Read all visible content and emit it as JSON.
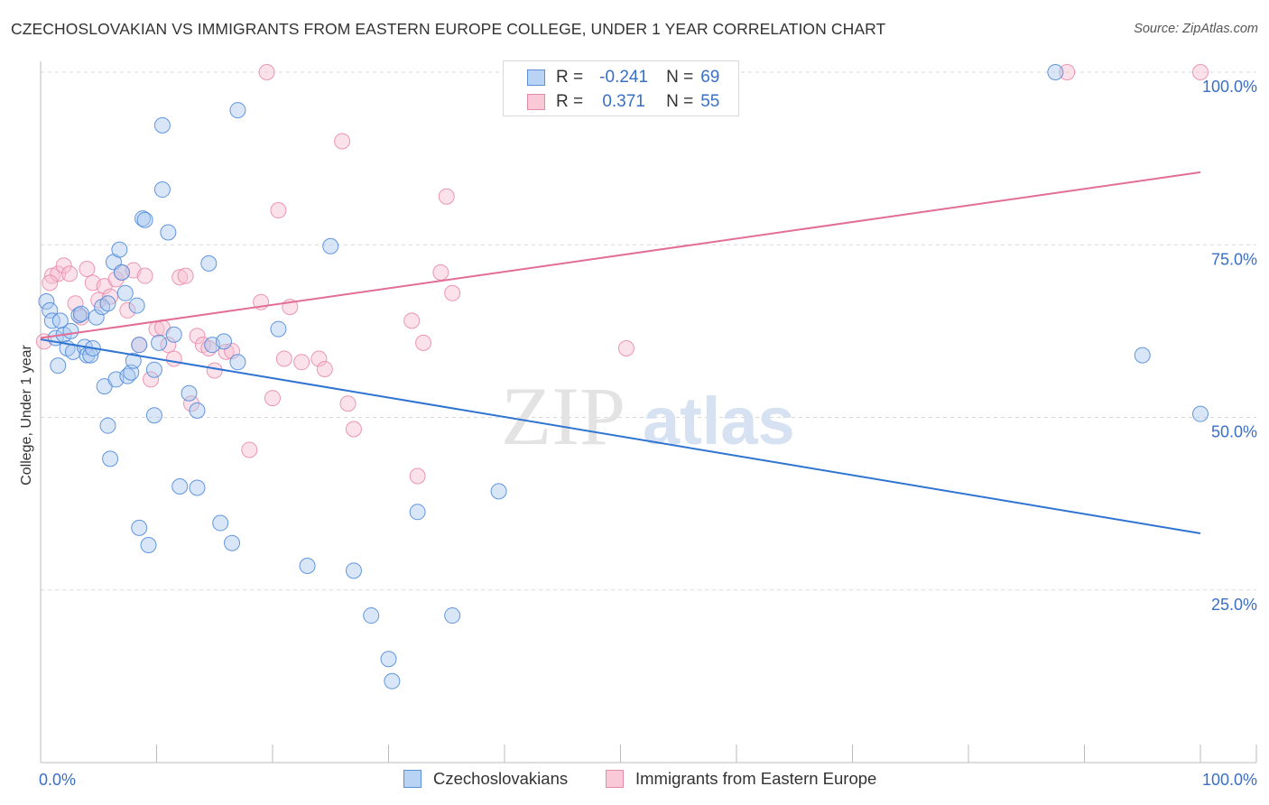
{
  "title": "CZECHOSLOVAKIAN VS IMMIGRANTS FROM EASTERN EUROPE COLLEGE, UNDER 1 YEAR CORRELATION CHART",
  "source": "Source: ZipAtlas.com",
  "watermark": {
    "zip": "ZIP",
    "atlas": "atlas"
  },
  "colors": {
    "blue_fill": "#a8c8f0",
    "blue_stroke": "#4a86d8",
    "blue_line": "#2f74d0",
    "pink_fill": "#f6bfd0",
    "pink_stroke": "#e986a8",
    "pink_line": "#e26d96",
    "tick_text": "#3a6fc6",
    "grid": "#d8d8d8"
  },
  "stats": {
    "r_label": "R =",
    "n_label": "N =",
    "rows": [
      {
        "r": "-0.241",
        "n": "69",
        "series": "blue"
      },
      {
        "r": "0.371",
        "n": "55",
        "series": "pink"
      }
    ]
  },
  "legend": {
    "blue": "Czechoslovakians",
    "pink": "Immigrants from Eastern Europe"
  },
  "chart_data": {
    "type": "scatter",
    "ylabel": "College, Under 1 year",
    "xlim": [
      0,
      100
    ],
    "ylim": [
      0,
      100
    ],
    "x_tick_labels": {
      "0": "0.0%",
      "100": "100.0%"
    },
    "y_ticks": [
      25,
      50,
      75,
      100
    ],
    "y_tick_labels": [
      "25.0%",
      "50.0%",
      "75.0%",
      "100.0%"
    ],
    "grid": "horizontal dashed",
    "legend_position": "bottom",
    "series": [
      {
        "name": "Czechoslovakians",
        "color": "blue",
        "trend": {
          "x": [
            0,
            100
          ],
          "y": [
            61.3,
            33.2
          ]
        },
        "points": [
          [
            0.5,
            66.8
          ],
          [
            0.8,
            65.5
          ],
          [
            1.0,
            64.0
          ],
          [
            1.3,
            61.5
          ],
          [
            1.5,
            57.5
          ],
          [
            1.7,
            64.0
          ],
          [
            2.0,
            62.0
          ],
          [
            2.3,
            60.0
          ],
          [
            2.6,
            62.5
          ],
          [
            2.8,
            59.5
          ],
          [
            3.3,
            64.8
          ],
          [
            3.5,
            65.0
          ],
          [
            3.8,
            60.2
          ],
          [
            4.0,
            59.0
          ],
          [
            4.3,
            59.0
          ],
          [
            4.5,
            60.0
          ],
          [
            4.8,
            64.5
          ],
          [
            5.3,
            66.0
          ],
          [
            5.5,
            54.5
          ],
          [
            5.8,
            66.5
          ],
          [
            5.8,
            48.8
          ],
          [
            6.0,
            44.0
          ],
          [
            6.3,
            72.5
          ],
          [
            6.5,
            55.5
          ],
          [
            6.8,
            74.3
          ],
          [
            7.0,
            71.0
          ],
          [
            7.3,
            68.0
          ],
          [
            7.5,
            56.0
          ],
          [
            7.8,
            56.5
          ],
          [
            8.0,
            58.2
          ],
          [
            8.3,
            66.2
          ],
          [
            8.5,
            60.5
          ],
          [
            8.5,
            34.0
          ],
          [
            8.8,
            78.8
          ],
          [
            9.0,
            78.6
          ],
          [
            9.3,
            31.5
          ],
          [
            9.8,
            50.3
          ],
          [
            9.8,
            56.9
          ],
          [
            10.2,
            60.8
          ],
          [
            10.5,
            92.3
          ],
          [
            10.5,
            83.0
          ],
          [
            11.0,
            76.8
          ],
          [
            11.5,
            62.0
          ],
          [
            12.0,
            40.0
          ],
          [
            12.8,
            53.5
          ],
          [
            13.5,
            39.8
          ],
          [
            13.5,
            51.0
          ],
          [
            14.5,
            72.3
          ],
          [
            14.8,
            60.5
          ],
          [
            15.5,
            34.7
          ],
          [
            15.8,
            61.0
          ],
          [
            16.5,
            31.8
          ],
          [
            17.0,
            58.0
          ],
          [
            17.0,
            94.5
          ],
          [
            20.5,
            62.8
          ],
          [
            23.0,
            28.5
          ],
          [
            25.0,
            74.8
          ],
          [
            27.0,
            27.8
          ],
          [
            28.5,
            21.3
          ],
          [
            30.0,
            15.0
          ],
          [
            30.3,
            11.8
          ],
          [
            32.5,
            36.3
          ],
          [
            35.5,
            21.3
          ],
          [
            39.5,
            39.3
          ],
          [
            49.0,
            98.8
          ],
          [
            50.5,
            100.0
          ],
          [
            87.5,
            100.0
          ],
          [
            95.0,
            59.0
          ],
          [
            100.0,
            50.5
          ]
        ]
      },
      {
        "name": "Immigrants from Eastern Europe",
        "color": "pink",
        "trend": {
          "x": [
            0,
            100
          ],
          "y": [
            61.5,
            85.5
          ]
        },
        "points": [
          [
            0.3,
            61.0
          ],
          [
            1.0,
            70.5
          ],
          [
            1.5,
            70.8
          ],
          [
            2.0,
            72.0
          ],
          [
            2.5,
            70.8
          ],
          [
            3.0,
            66.5
          ],
          [
            3.5,
            64.5
          ],
          [
            4.0,
            71.5
          ],
          [
            4.5,
            69.5
          ],
          [
            5.0,
            67.0
          ],
          [
            5.5,
            69.0
          ],
          [
            6.0,
            67.5
          ],
          [
            6.5,
            70.0
          ],
          [
            7.0,
            71.0
          ],
          [
            7.5,
            65.5
          ],
          [
            8.0,
            71.3
          ],
          [
            8.5,
            60.5
          ],
          [
            9.0,
            70.5
          ],
          [
            9.5,
            55.5
          ],
          [
            10.0,
            62.8
          ],
          [
            10.5,
            63.0
          ],
          [
            11.0,
            60.5
          ],
          [
            11.5,
            58.5
          ],
          [
            12.0,
            70.3
          ],
          [
            12.5,
            70.5
          ],
          [
            13.0,
            52.0
          ],
          [
            13.5,
            61.8
          ],
          [
            14.0,
            60.5
          ],
          [
            14.5,
            60.0
          ],
          [
            15.0,
            56.8
          ],
          [
            16.0,
            59.5
          ],
          [
            16.5,
            59.6
          ],
          [
            18.0,
            45.3
          ],
          [
            19.0,
            66.7
          ],
          [
            19.5,
            100.0
          ],
          [
            20.0,
            52.8
          ],
          [
            20.5,
            80.0
          ],
          [
            21.0,
            58.5
          ],
          [
            21.5,
            66.0
          ],
          [
            22.5,
            58.0
          ],
          [
            24.0,
            58.5
          ],
          [
            24.5,
            57.0
          ],
          [
            26.0,
            90.0
          ],
          [
            26.5,
            52.0
          ],
          [
            27.0,
            48.3
          ],
          [
            32.0,
            64.0
          ],
          [
            32.5,
            41.5
          ],
          [
            33.0,
            60.8
          ],
          [
            34.5,
            71.0
          ],
          [
            35.0,
            82.0
          ],
          [
            35.5,
            68.0
          ],
          [
            50.5,
            60.0
          ],
          [
            88.5,
            100.0
          ],
          [
            100.0,
            100.0
          ],
          [
            0.8,
            69.5
          ]
        ]
      }
    ]
  }
}
